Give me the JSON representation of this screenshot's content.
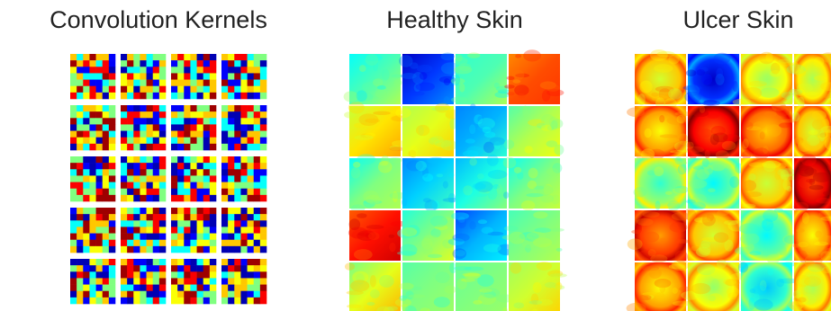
{
  "panels": [
    {
      "title": "Convolution Kernels"
    },
    {
      "title": "Healthy Skin"
    },
    {
      "title": "Ulcer Skin"
    }
  ]
}
